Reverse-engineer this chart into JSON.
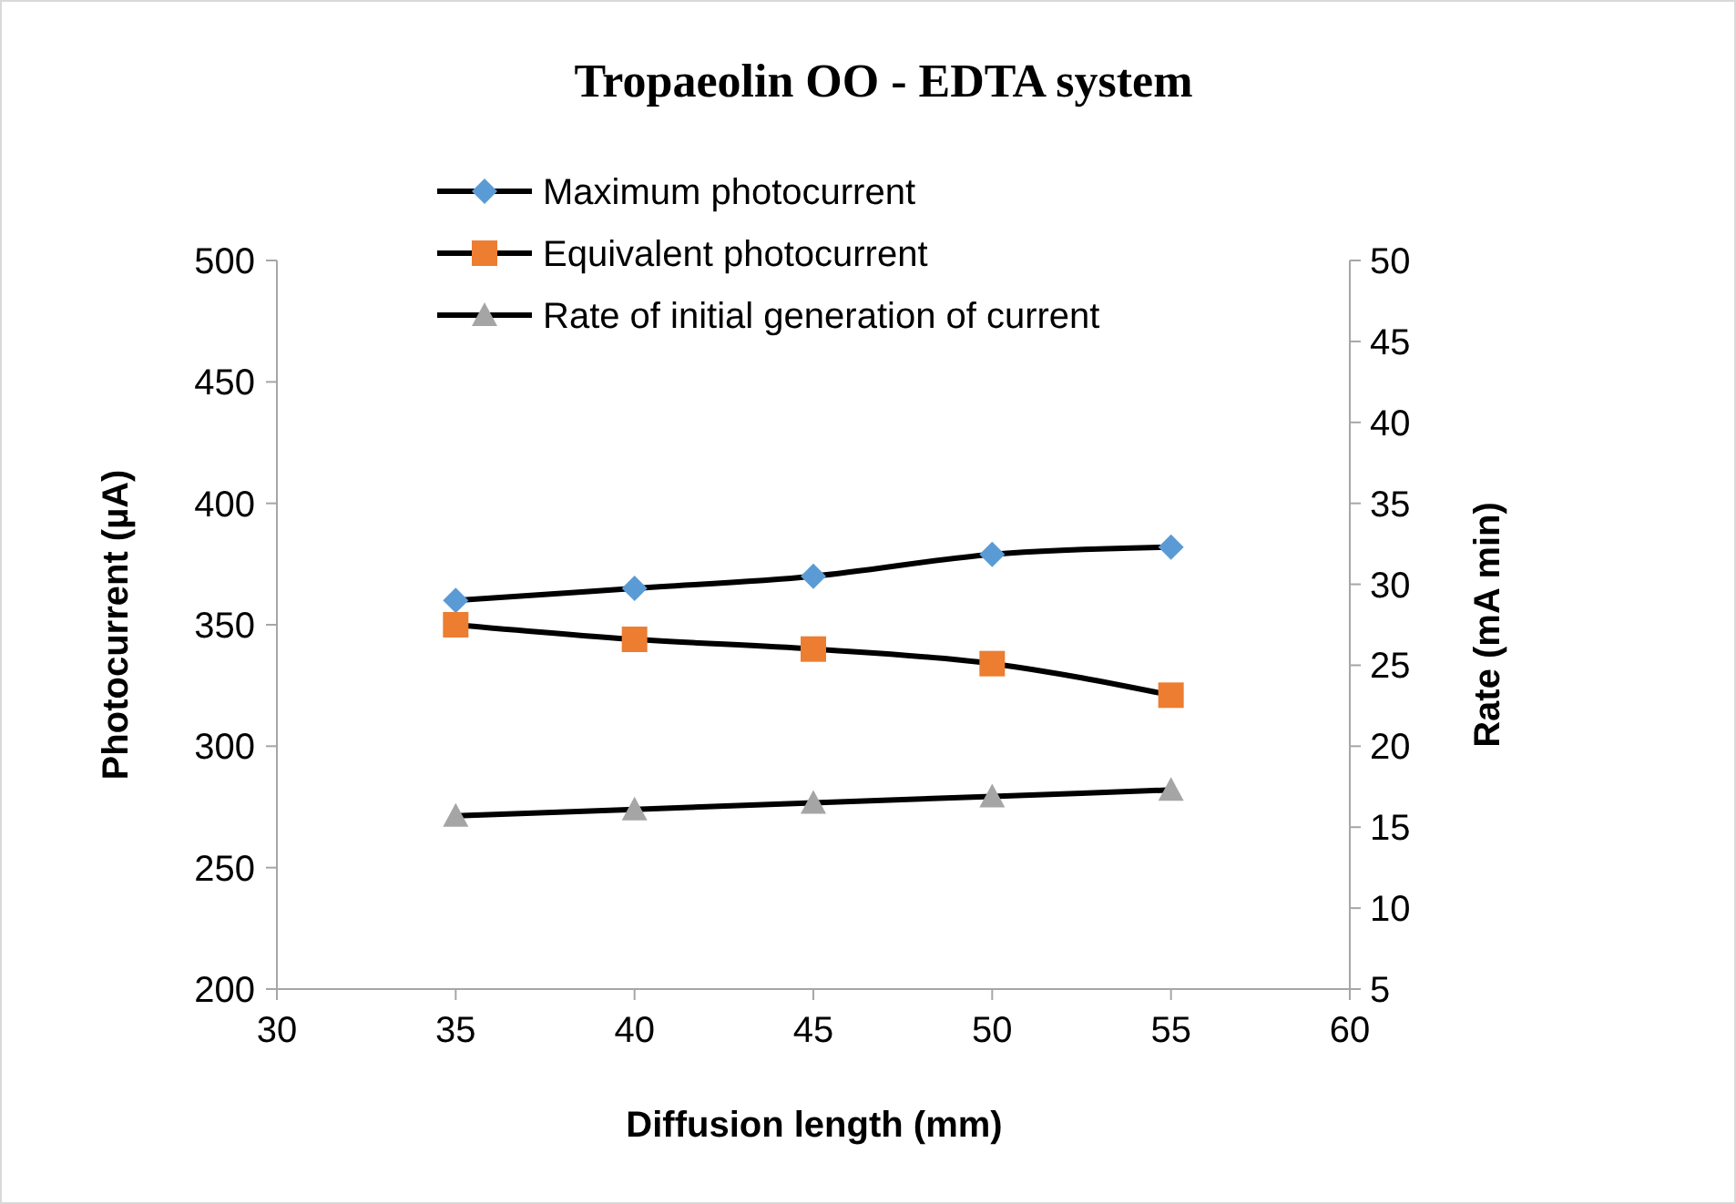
{
  "chart_data": {
    "type": "line",
    "title": "Tropaeolin OO - EDTA system",
    "xlabel": "Diffusion length (mm)",
    "ylabel": "Photocurrent (µA)",
    "y2label": "Rate (mA min)",
    "x": [
      35,
      40,
      45,
      50,
      55
    ],
    "series": [
      {
        "name": "Maximum photocurrent",
        "color": "#5b9bd5",
        "marker": "diamond",
        "values": [
          360,
          365,
          370,
          379,
          382
        ]
      },
      {
        "name": "Equivalent photocurrent",
        "color": "#ed7d31",
        "marker": "square",
        "values": [
          350,
          344,
          340,
          334,
          321
        ]
      },
      {
        "name": "Rate of initial generation of current",
        "color": "#a5a5a5",
        "marker": "triangle",
        "axis": "y2",
        "values": [
          15.7,
          16.1,
          16.5,
          16.9,
          17.3
        ]
      }
    ],
    "xlim": [
      30,
      60
    ],
    "xticks": [
      30,
      35,
      40,
      45,
      50,
      55,
      60
    ],
    "ylim": [
      200,
      500
    ],
    "yticks": [
      200,
      250,
      300,
      350,
      400,
      450,
      500
    ],
    "y2lim": [
      5,
      50
    ],
    "y2ticks": [
      5,
      10,
      15,
      20,
      25,
      30,
      35,
      40,
      45,
      50
    ],
    "grid": false,
    "legend": "top",
    "line_style": "solid"
  }
}
